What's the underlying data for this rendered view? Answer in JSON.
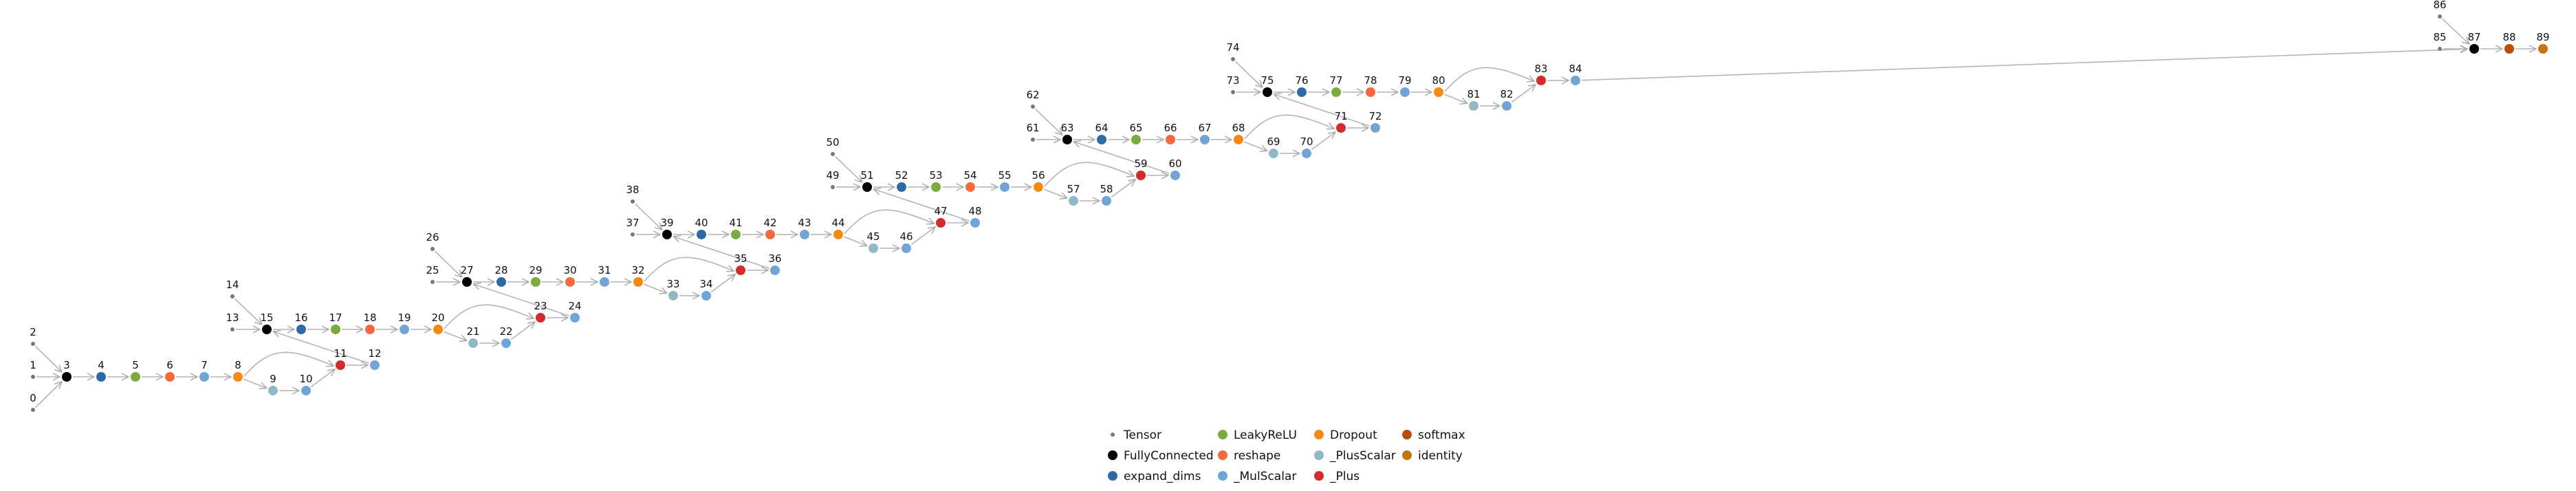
{
  "legend": [
    {
      "type": "Tensor",
      "color": "#777777"
    },
    {
      "type": "FullyConnected",
      "color": "#000000"
    },
    {
      "type": "expand_dims",
      "color": "#2e6aa5"
    },
    {
      "type": "LeakyReLU",
      "color": "#7aab3f"
    },
    {
      "type": "reshape",
      "color": "#f4693d"
    },
    {
      "type": "_MulScalar",
      "color": "#72a5d6"
    },
    {
      "type": "Dropout",
      "color": "#f48a12"
    },
    {
      "type": "_PlusScalar",
      "color": "#8fb9c4"
    },
    {
      "type": "_Plus",
      "color": "#d32b2b"
    },
    {
      "type": "softmax",
      "color": "#b84d0d"
    },
    {
      "type": "identity",
      "color": "#c4750c"
    }
  ],
  "nodes": [
    {
      "id": "0",
      "type": "Tensor"
    },
    {
      "id": "1",
      "type": "Tensor"
    },
    {
      "id": "2",
      "type": "Tensor"
    },
    {
      "id": "3",
      "type": "FullyConnected"
    },
    {
      "id": "4",
      "type": "expand_dims"
    },
    {
      "id": "5",
      "type": "LeakyReLU"
    },
    {
      "id": "6",
      "type": "reshape"
    },
    {
      "id": "7",
      "type": "_MulScalar"
    },
    {
      "id": "8",
      "type": "Dropout"
    },
    {
      "id": "9",
      "type": "_PlusScalar"
    },
    {
      "id": "10",
      "type": "_MulScalar"
    },
    {
      "id": "11",
      "type": "_Plus"
    },
    {
      "id": "12",
      "type": "_MulScalar"
    },
    {
      "id": "13",
      "type": "Tensor"
    },
    {
      "id": "14",
      "type": "Tensor"
    },
    {
      "id": "15",
      "type": "FullyConnected"
    },
    {
      "id": "16",
      "type": "expand_dims"
    },
    {
      "id": "17",
      "type": "LeakyReLU"
    },
    {
      "id": "18",
      "type": "reshape"
    },
    {
      "id": "19",
      "type": "_MulScalar"
    },
    {
      "id": "20",
      "type": "Dropout"
    },
    {
      "id": "21",
      "type": "_PlusScalar"
    },
    {
      "id": "22",
      "type": "_MulScalar"
    },
    {
      "id": "23",
      "type": "_Plus"
    },
    {
      "id": "24",
      "type": "_MulScalar"
    },
    {
      "id": "25",
      "type": "Tensor"
    },
    {
      "id": "26",
      "type": "Tensor"
    },
    {
      "id": "27",
      "type": "FullyConnected"
    },
    {
      "id": "28",
      "type": "expand_dims"
    },
    {
      "id": "29",
      "type": "LeakyReLU"
    },
    {
      "id": "30",
      "type": "reshape"
    },
    {
      "id": "31",
      "type": "_MulScalar"
    },
    {
      "id": "32",
      "type": "Dropout"
    },
    {
      "id": "33",
      "type": "_PlusScalar"
    },
    {
      "id": "34",
      "type": "_MulScalar"
    },
    {
      "id": "35",
      "type": "_Plus"
    },
    {
      "id": "36",
      "type": "_MulScalar"
    },
    {
      "id": "37",
      "type": "Tensor"
    },
    {
      "id": "38",
      "type": "Tensor"
    },
    {
      "id": "39",
      "type": "FullyConnected"
    },
    {
      "id": "40",
      "type": "expand_dims"
    },
    {
      "id": "41",
      "type": "LeakyReLU"
    },
    {
      "id": "42",
      "type": "reshape"
    },
    {
      "id": "43",
      "type": "_MulScalar"
    },
    {
      "id": "44",
      "type": "Dropout"
    },
    {
      "id": "45",
      "type": "_PlusScalar"
    },
    {
      "id": "46",
      "type": "_MulScalar"
    },
    {
      "id": "47",
      "type": "_Plus"
    },
    {
      "id": "48",
      "type": "_MulScalar"
    },
    {
      "id": "49",
      "type": "Tensor"
    },
    {
      "id": "50",
      "type": "Tensor"
    },
    {
      "id": "51",
      "type": "FullyConnected"
    },
    {
      "id": "52",
      "type": "expand_dims"
    },
    {
      "id": "53",
      "type": "LeakyReLU"
    },
    {
      "id": "54",
      "type": "reshape"
    },
    {
      "id": "55",
      "type": "_MulScalar"
    },
    {
      "id": "56",
      "type": "Dropout"
    },
    {
      "id": "57",
      "type": "_PlusScalar"
    },
    {
      "id": "58",
      "type": "_MulScalar"
    },
    {
      "id": "59",
      "type": "_Plus"
    },
    {
      "id": "60",
      "type": "_MulScalar"
    },
    {
      "id": "61",
      "type": "Tensor"
    },
    {
      "id": "62",
      "type": "Tensor"
    },
    {
      "id": "63",
      "type": "FullyConnected"
    },
    {
      "id": "64",
      "type": "expand_dims"
    },
    {
      "id": "65",
      "type": "LeakyReLU"
    },
    {
      "id": "66",
      "type": "reshape"
    },
    {
      "id": "67",
      "type": "_MulScalar"
    },
    {
      "id": "68",
      "type": "Dropout"
    },
    {
      "id": "69",
      "type": "_PlusScalar"
    },
    {
      "id": "70",
      "type": "_MulScalar"
    },
    {
      "id": "71",
      "type": "_Plus"
    },
    {
      "id": "72",
      "type": "_MulScalar"
    },
    {
      "id": "73",
      "type": "Tensor"
    },
    {
      "id": "74",
      "type": "Tensor"
    },
    {
      "id": "75",
      "type": "FullyConnected"
    },
    {
      "id": "76",
      "type": "expand_dims"
    },
    {
      "id": "77",
      "type": "LeakyReLU"
    },
    {
      "id": "78",
      "type": "reshape"
    },
    {
      "id": "79",
      "type": "_MulScalar"
    },
    {
      "id": "80",
      "type": "Dropout"
    },
    {
      "id": "81",
      "type": "_PlusScalar"
    },
    {
      "id": "82",
      "type": "_MulScalar"
    },
    {
      "id": "83",
      "type": "_Plus"
    },
    {
      "id": "84",
      "type": "_MulScalar"
    },
    {
      "id": "85",
      "type": "Tensor"
    },
    {
      "id": "86",
      "type": "Tensor"
    },
    {
      "id": "87",
      "type": "FullyConnected"
    },
    {
      "id": "88",
      "type": "softmax"
    },
    {
      "id": "89",
      "type": "identity"
    }
  ],
  "edges": [
    [
      "0",
      "3"
    ],
    [
      "1",
      "3"
    ],
    [
      "2",
      "3"
    ],
    [
      "3",
      "4"
    ],
    [
      "4",
      "5"
    ],
    [
      "5",
      "6"
    ],
    [
      "6",
      "7"
    ],
    [
      "7",
      "8"
    ],
    [
      "8",
      "9"
    ],
    [
      "9",
      "10"
    ],
    [
      "10",
      "11"
    ],
    [
      "8",
      "11"
    ],
    [
      "11",
      "12"
    ],
    [
      "12",
      "15"
    ],
    [
      "13",
      "15"
    ],
    [
      "14",
      "15"
    ],
    [
      "15",
      "16"
    ],
    [
      "16",
      "17"
    ],
    [
      "17",
      "18"
    ],
    [
      "18",
      "19"
    ],
    [
      "19",
      "20"
    ],
    [
      "20",
      "21"
    ],
    [
      "21",
      "22"
    ],
    [
      "22",
      "23"
    ],
    [
      "20",
      "23"
    ],
    [
      "23",
      "24"
    ],
    [
      "24",
      "27"
    ],
    [
      "25",
      "27"
    ],
    [
      "26",
      "27"
    ],
    [
      "27",
      "28"
    ],
    [
      "28",
      "29"
    ],
    [
      "29",
      "30"
    ],
    [
      "30",
      "31"
    ],
    [
      "31",
      "32"
    ],
    [
      "32",
      "33"
    ],
    [
      "33",
      "34"
    ],
    [
      "34",
      "35"
    ],
    [
      "32",
      "35"
    ],
    [
      "35",
      "36"
    ],
    [
      "36",
      "39"
    ],
    [
      "37",
      "39"
    ],
    [
      "38",
      "39"
    ],
    [
      "39",
      "40"
    ],
    [
      "40",
      "41"
    ],
    [
      "41",
      "42"
    ],
    [
      "42",
      "43"
    ],
    [
      "43",
      "44"
    ],
    [
      "44",
      "45"
    ],
    [
      "45",
      "46"
    ],
    [
      "46",
      "47"
    ],
    [
      "44",
      "47"
    ],
    [
      "47",
      "48"
    ],
    [
      "48",
      "51"
    ],
    [
      "49",
      "51"
    ],
    [
      "50",
      "51"
    ],
    [
      "51",
      "52"
    ],
    [
      "52",
      "53"
    ],
    [
      "53",
      "54"
    ],
    [
      "54",
      "55"
    ],
    [
      "55",
      "56"
    ],
    [
      "56",
      "57"
    ],
    [
      "57",
      "58"
    ],
    [
      "58",
      "59"
    ],
    [
      "56",
      "59"
    ],
    [
      "59",
      "60"
    ],
    [
      "60",
      "63"
    ],
    [
      "61",
      "63"
    ],
    [
      "62",
      "63"
    ],
    [
      "63",
      "64"
    ],
    [
      "64",
      "65"
    ],
    [
      "65",
      "66"
    ],
    [
      "66",
      "67"
    ],
    [
      "67",
      "68"
    ],
    [
      "68",
      "69"
    ],
    [
      "69",
      "70"
    ],
    [
      "70",
      "71"
    ],
    [
      "68",
      "71"
    ],
    [
      "71",
      "72"
    ],
    [
      "72",
      "75"
    ],
    [
      "73",
      "75"
    ],
    [
      "74",
      "75"
    ],
    [
      "75",
      "76"
    ],
    [
      "76",
      "77"
    ],
    [
      "77",
      "78"
    ],
    [
      "78",
      "79"
    ],
    [
      "79",
      "80"
    ],
    [
      "80",
      "81"
    ],
    [
      "81",
      "82"
    ],
    [
      "82",
      "83"
    ],
    [
      "80",
      "83"
    ],
    [
      "83",
      "84"
    ],
    [
      "84",
      "87"
    ],
    [
      "85",
      "87"
    ],
    [
      "86",
      "87"
    ],
    [
      "87",
      "88"
    ],
    [
      "88",
      "89"
    ]
  ]
}
